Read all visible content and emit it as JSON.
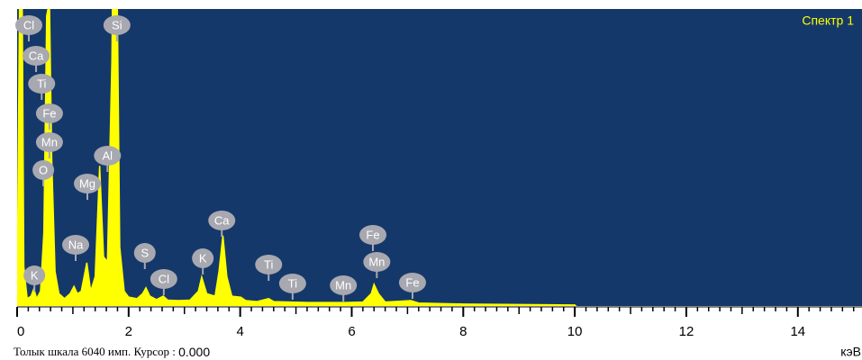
{
  "chart_data": {
    "type": "spectrum",
    "title": "Спектр 1",
    "x_unit": "кэВ",
    "full_scale_label": "Толык шкала",
    "full_scale": 6040,
    "full_scale_unit": "имп.",
    "cursor_label": "Курсор :",
    "cursor": "0.000",
    "color": "#ffff00",
    "background": "#15386a",
    "xlim": [
      0,
      15.15
    ],
    "xticks": [
      0,
      2,
      4,
      6,
      8,
      10,
      12,
      14
    ],
    "x": [
      0,
      0.02,
      0.05,
      0.09,
      0.12,
      0.18,
      0.25,
      0.3,
      0.35,
      0.42,
      0.48,
      0.53,
      0.58,
      0.62,
      0.68,
      0.75,
      0.85,
      0.95,
      1.02,
      1.08,
      1.15,
      1.25,
      1.32,
      1.4,
      1.48,
      1.55,
      1.62,
      1.7,
      1.74,
      1.78,
      1.84,
      1.92,
      2.0,
      2.15,
      2.25,
      2.31,
      2.38,
      2.5,
      2.62,
      2.7,
      2.9,
      3.1,
      3.25,
      3.31,
      3.4,
      3.55,
      3.62,
      3.69,
      3.76,
      3.85,
      4.01,
      4.1,
      4.3,
      4.51,
      4.6,
      4.9,
      5.2,
      5.9,
      6.2,
      6.35,
      6.4,
      6.48,
      6.6,
      7.06,
      7.2,
      8.0,
      9.0,
      10.0,
      10.02
    ],
    "values": [
      0,
      3000,
      7000,
      6500,
      800,
      150,
      200,
      350,
      150,
      300,
      1500,
      5900,
      6200,
      3000,
      700,
      250,
      150,
      250,
      400,
      250,
      300,
      880,
      300,
      600,
      2850,
      1000,
      900,
      5000,
      9500,
      8000,
      1200,
      300,
      180,
      150,
      250,
      370,
      200,
      130,
      200,
      120,
      110,
      120,
      300,
      590,
      250,
      200,
      700,
      1430,
      600,
      200,
      180,
      110,
      90,
      150,
      90,
      80,
      70,
      70,
      80,
      250,
      440,
      250,
      80,
      110,
      60,
      40,
      30,
      20,
      0
    ],
    "annotations": [
      {
        "label": "Cl",
        "x": 0.21
      },
      {
        "label": "Ca",
        "x": 0.34
      },
      {
        "label": "Ti",
        "x": 0.44
      },
      {
        "label": "Fe",
        "x": 0.58
      },
      {
        "label": "Mn",
        "x": 0.58
      },
      {
        "label": "O",
        "x": 0.47
      },
      {
        "label": "K",
        "x": 0.31
      },
      {
        "label": "Si",
        "x": 1.79
      },
      {
        "label": "Al",
        "x": 1.62
      },
      {
        "label": "Mg",
        "x": 1.26
      },
      {
        "label": "Na",
        "x": 1.05
      },
      {
        "label": "S",
        "x": 2.29
      },
      {
        "label": "Cl",
        "x": 2.63
      },
      {
        "label": "K",
        "x": 3.33
      },
      {
        "label": "Ca",
        "x": 3.67
      },
      {
        "label": "Ti",
        "x": 4.51
      },
      {
        "label": "Ti",
        "x": 4.94
      },
      {
        "label": "Mn",
        "x": 5.85
      },
      {
        "label": "Fe",
        "x": 6.38
      },
      {
        "label": "Mn",
        "x": 6.45
      },
      {
        "label": "Fe",
        "x": 7.09
      }
    ]
  }
}
